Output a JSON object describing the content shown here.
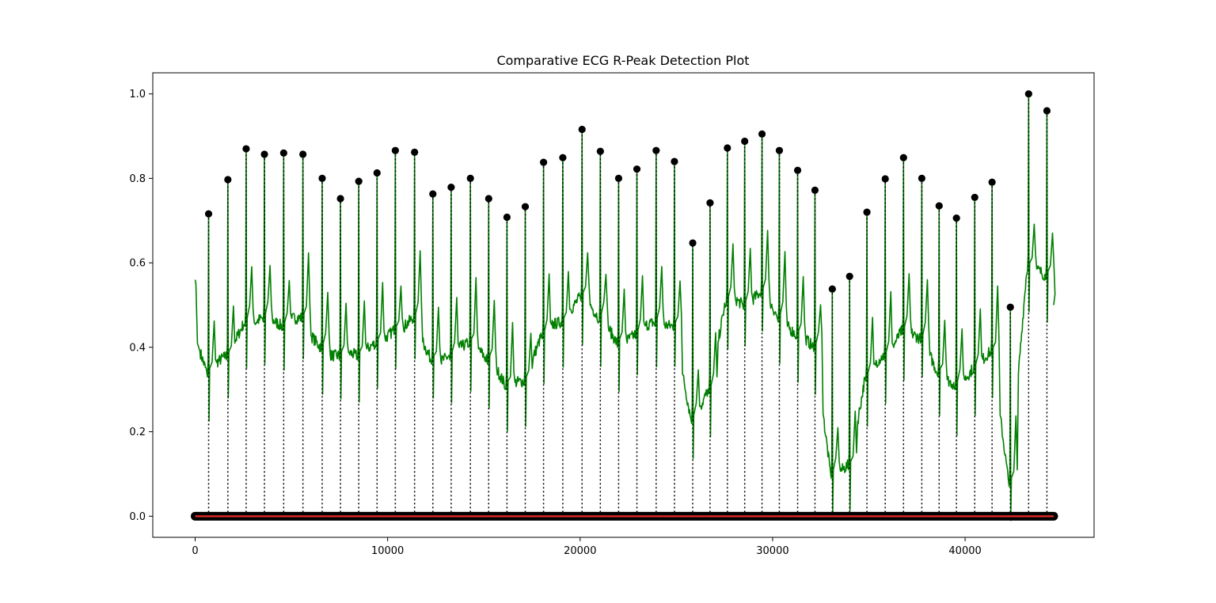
{
  "chart_data": {
    "type": "line",
    "title": "Comparative ECG R-Peak Detection Plot",
    "xlabel": "",
    "ylabel": "",
    "xlim": [
      -2200,
      46700
    ],
    "ylim": [
      -0.05,
      1.05
    ],
    "grid": false,
    "x_ticks": [
      0,
      10000,
      20000,
      30000,
      40000
    ],
    "x_tick_labels": [
      "0",
      "10000",
      "20000",
      "30000",
      "40000"
    ],
    "y_ticks": [
      0.0,
      0.2,
      0.4,
      0.6,
      0.8,
      1.0
    ],
    "y_tick_labels": [
      "0.0",
      "0.2",
      "0.4",
      "0.6",
      "0.8",
      "1.0"
    ],
    "signal_x_range": [
      0,
      44600
    ],
    "signal_start_value": 0.56,
    "signal_end_value": 0.5,
    "colors": {
      "signal": "#008000",
      "peak_marker": "#000000",
      "peak_line": "#000000",
      "baseline": "#d62728",
      "baseline_marker": "#000000"
    },
    "baseline_value": 0.0,
    "beats": [
      {
        "x": 700,
        "peak": 0.716,
        "base": 0.34
      },
      {
        "x": 1700,
        "peak": 0.797,
        "base": 0.38
      },
      {
        "x": 2650,
        "peak": 0.87,
        "base": 0.46
      },
      {
        "x": 3600,
        "peak": 0.857,
        "base": 0.47
      },
      {
        "x": 4600,
        "peak": 0.86,
        "base": 0.45
      },
      {
        "x": 5600,
        "peak": 0.857,
        "base": 0.47
      },
      {
        "x": 6600,
        "peak": 0.8,
        "base": 0.4
      },
      {
        "x": 7550,
        "peak": 0.752,
        "base": 0.38
      },
      {
        "x": 8500,
        "peak": 0.793,
        "base": 0.38
      },
      {
        "x": 9450,
        "peak": 0.813,
        "base": 0.41
      },
      {
        "x": 10400,
        "peak": 0.866,
        "base": 0.44
      },
      {
        "x": 11400,
        "peak": 0.862,
        "base": 0.47
      },
      {
        "x": 12350,
        "peak": 0.763,
        "base": 0.37
      },
      {
        "x": 13300,
        "peak": 0.779,
        "base": 0.38
      },
      {
        "x": 14300,
        "peak": 0.8,
        "base": 0.41
      },
      {
        "x": 15250,
        "peak": 0.752,
        "base": 0.37
      },
      {
        "x": 16200,
        "peak": 0.708,
        "base": 0.31
      },
      {
        "x": 17150,
        "peak": 0.733,
        "base": 0.32
      },
      {
        "x": 18100,
        "peak": 0.838,
        "base": 0.43
      },
      {
        "x": 19100,
        "peak": 0.849,
        "base": 0.46
      },
      {
        "x": 20100,
        "peak": 0.916,
        "base": 0.52
      },
      {
        "x": 21050,
        "peak": 0.864,
        "base": 0.47
      },
      {
        "x": 22000,
        "peak": 0.8,
        "base": 0.41
      },
      {
        "x": 22950,
        "peak": 0.822,
        "base": 0.43
      },
      {
        "x": 23950,
        "peak": 0.866,
        "base": 0.46
      },
      {
        "x": 24900,
        "peak": 0.84,
        "base": 0.45
      },
      {
        "x": 25850,
        "peak": 0.647,
        "base": 0.23
      },
      {
        "x": 26750,
        "peak": 0.742,
        "base": 0.3
      },
      {
        "x": 27650,
        "peak": 0.872,
        "base": 0.51
      },
      {
        "x": 28550,
        "peak": 0.888,
        "base": 0.5
      },
      {
        "x": 29450,
        "peak": 0.905,
        "base": 0.53
      },
      {
        "x": 30350,
        "peak": 0.866,
        "base": 0.47
      },
      {
        "x": 31300,
        "peak": 0.819,
        "base": 0.43
      },
      {
        "x": 32200,
        "peak": 0.772,
        "base": 0.4
      },
      {
        "x": 33100,
        "peak": 0.538,
        "base": 0.1
      },
      {
        "x": 34000,
        "peak": 0.568,
        "base": 0.12
      },
      {
        "x": 34900,
        "peak": 0.72,
        "base": 0.33
      },
      {
        "x": 35850,
        "peak": 0.799,
        "base": 0.38
      },
      {
        "x": 36800,
        "peak": 0.849,
        "base": 0.44
      },
      {
        "x": 37750,
        "peak": 0.8,
        "base": 0.42
      },
      {
        "x": 38650,
        "peak": 0.735,
        "base": 0.34
      },
      {
        "x": 39550,
        "peak": 0.706,
        "base": 0.31
      },
      {
        "x": 40500,
        "peak": 0.755,
        "base": 0.35
      },
      {
        "x": 41400,
        "peak": 0.791,
        "base": 0.39
      },
      {
        "x": 42350,
        "peak": 0.495,
        "base": 0.08
      },
      {
        "x": 43300,
        "peak": 1.0,
        "base": 0.59
      },
      {
        "x": 44250,
        "peak": 0.96,
        "base": 0.57
      }
    ]
  }
}
